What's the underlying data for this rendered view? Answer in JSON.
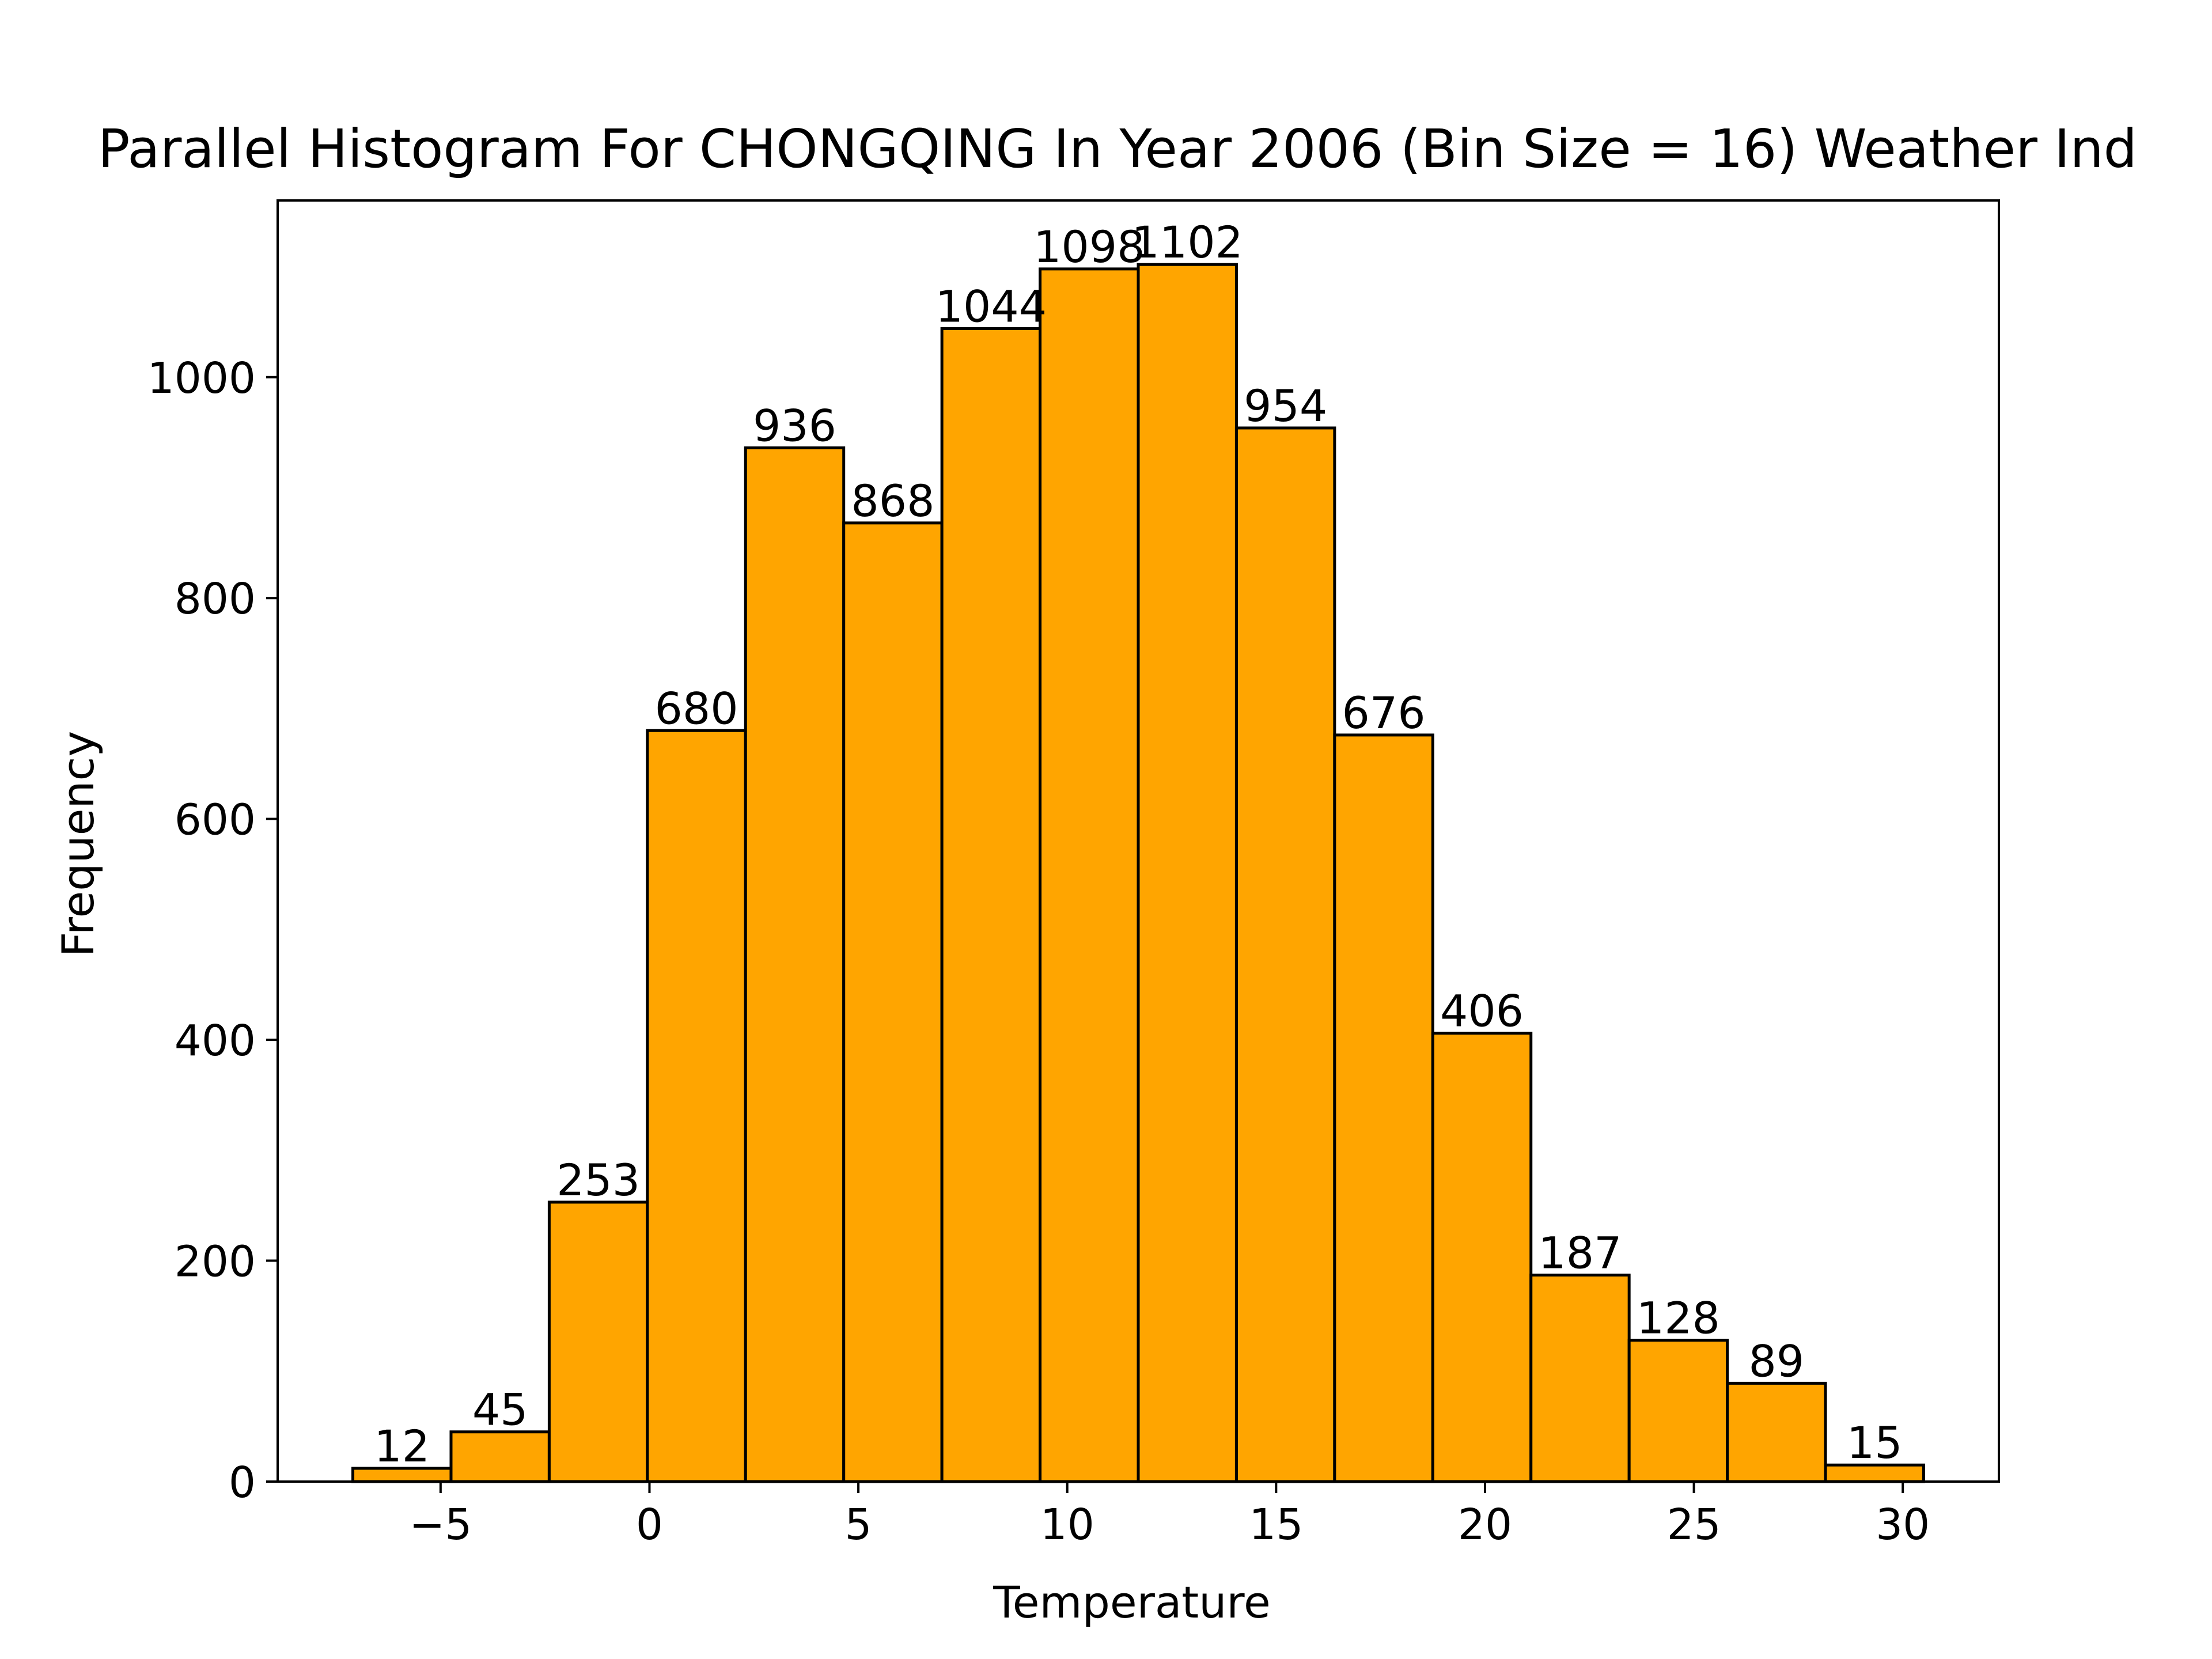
{
  "chart_data": {
    "type": "bar",
    "title": "Parallel Histogram For CHONGQING In Year 2006 (Bin Size = 16) Weather Ind",
    "xlabel": "Temperature",
    "ylabel": "Frequency",
    "bin_edges": [
      -7.1,
      -4.75,
      -2.4,
      -0.05,
      2.3,
      4.65,
      7.0,
      9.35,
      11.7,
      14.05,
      16.4,
      18.75,
      21.1,
      23.45,
      25.8,
      28.15,
      30.5
    ],
    "values": [
      12,
      45,
      253,
      680,
      936,
      868,
      1044,
      1098,
      1102,
      954,
      676,
      406,
      187,
      128,
      89,
      15
    ],
    "value_labels": [
      "12",
      "45",
      "253",
      "680",
      "936",
      "868",
      "1044",
      "1098",
      "1102",
      "954",
      "676",
      "406",
      "187",
      "128",
      "89",
      "15"
    ],
    "xlim": [
      -8.9,
      32.3
    ],
    "ylim": [
      0,
      1160
    ],
    "xticks": [
      -5,
      0,
      5,
      10,
      15,
      20,
      25,
      30
    ],
    "xtick_labels": [
      "−5",
      "0",
      "5",
      "10",
      "15",
      "20",
      "25",
      "30"
    ],
    "yticks": [
      0,
      200,
      400,
      600,
      800,
      1000
    ],
    "ytick_labels": [
      "0",
      "200",
      "400",
      "600",
      "800",
      "1000"
    ],
    "bar_color": "#ffa500",
    "edge_color": "#000000",
    "grid": false,
    "legend": "none"
  }
}
